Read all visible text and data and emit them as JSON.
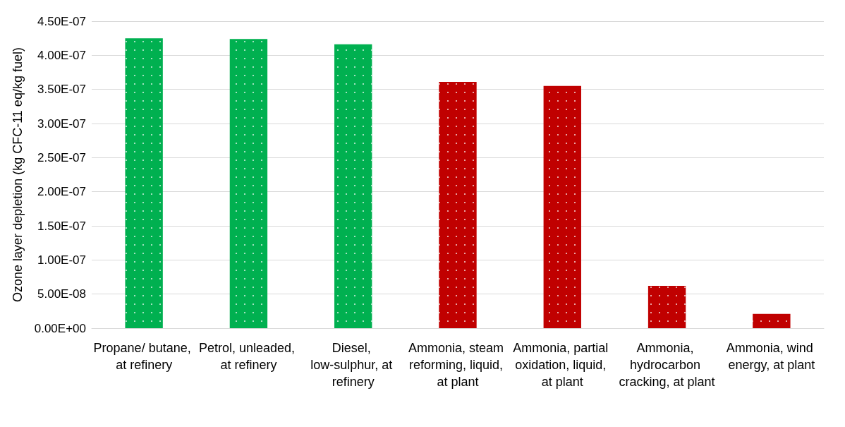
{
  "chart_data": {
    "type": "bar",
    "ylabel": "Ozone layer depletion (kg CFC-11 eq/kg fuel)",
    "categories": [
      "Propane/ butane, at refinery",
      "Petrol, unleaded, at refinery",
      "Diesel, low-sulphur, at refinery",
      "Ammonia, steam reforming, liquid, at plant",
      "Ammonia, partial oxidation, liquid, at plant",
      "Ammonia, hydrocarbon cracking, at plant",
      "Ammonia, wind energy, at plant"
    ],
    "values": [
      4.25e-07,
      4.24e-07,
      4.16e-07,
      3.61e-07,
      3.55e-07,
      6.2e-08,
      2.1e-08
    ],
    "colors": [
      "#00b050",
      "#00b050",
      "#00b050",
      "#c00000",
      "#c00000",
      "#c00000",
      "#c00000"
    ],
    "ylim": [
      0,
      4.5e-07
    ],
    "yticks": [
      {
        "value": 0,
        "label": "0.00E+00"
      },
      {
        "value": 5e-08,
        "label": "5.00E-08"
      },
      {
        "value": 1e-07,
        "label": "1.00E-07"
      },
      {
        "value": 1.5e-07,
        "label": "1.50E-07"
      },
      {
        "value": 2e-07,
        "label": "2.00E-07"
      },
      {
        "value": 2.5e-07,
        "label": "2.50E-07"
      },
      {
        "value": 3e-07,
        "label": "3.00E-07"
      },
      {
        "value": 3.5e-07,
        "label": "3.50E-07"
      },
      {
        "value": 4e-07,
        "label": "4.00E-07"
      },
      {
        "value": 4.5e-07,
        "label": "4.50E-07"
      }
    ],
    "grid": "y"
  }
}
